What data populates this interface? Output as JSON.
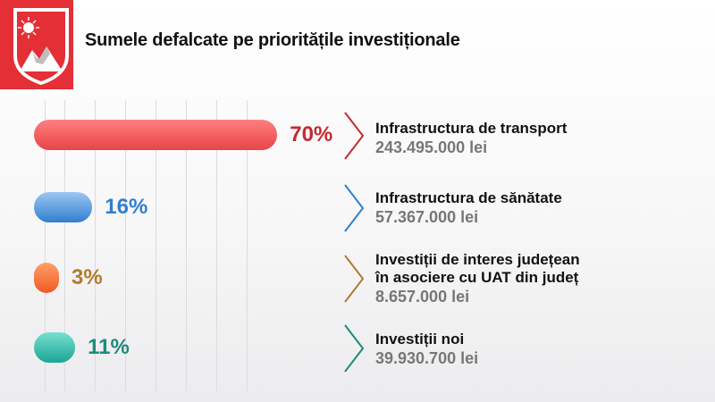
{
  "title": "Sumele defalcate pe prioritățile investiționale",
  "colors": {
    "crest_red": "#e42f36",
    "transport": "#e84448",
    "sanatate": "#2f7fcf",
    "interes": "#b27a2c",
    "noi": "#1f8a7a"
  },
  "chart_data": {
    "type": "bar",
    "orientation": "horizontal",
    "title": "Sumele defalcate pe prioritățile investiționale",
    "unit": "%",
    "xlim": [
      0,
      100
    ],
    "grid": true,
    "categories": [
      "Infrastructura de transport",
      "Infrastructura de sănătate",
      "Investiții de interes județean\nîn asociere cu UAT din județ",
      "Investiții noi"
    ],
    "values": [
      70,
      16,
      3,
      11
    ],
    "value_labels": [
      "70%",
      "16%",
      "3%",
      "11%"
    ],
    "amounts": [
      "243.495.000 lei",
      "57.367.000 lei",
      "8.657.000 lei",
      "39.930.700 lei"
    ]
  }
}
